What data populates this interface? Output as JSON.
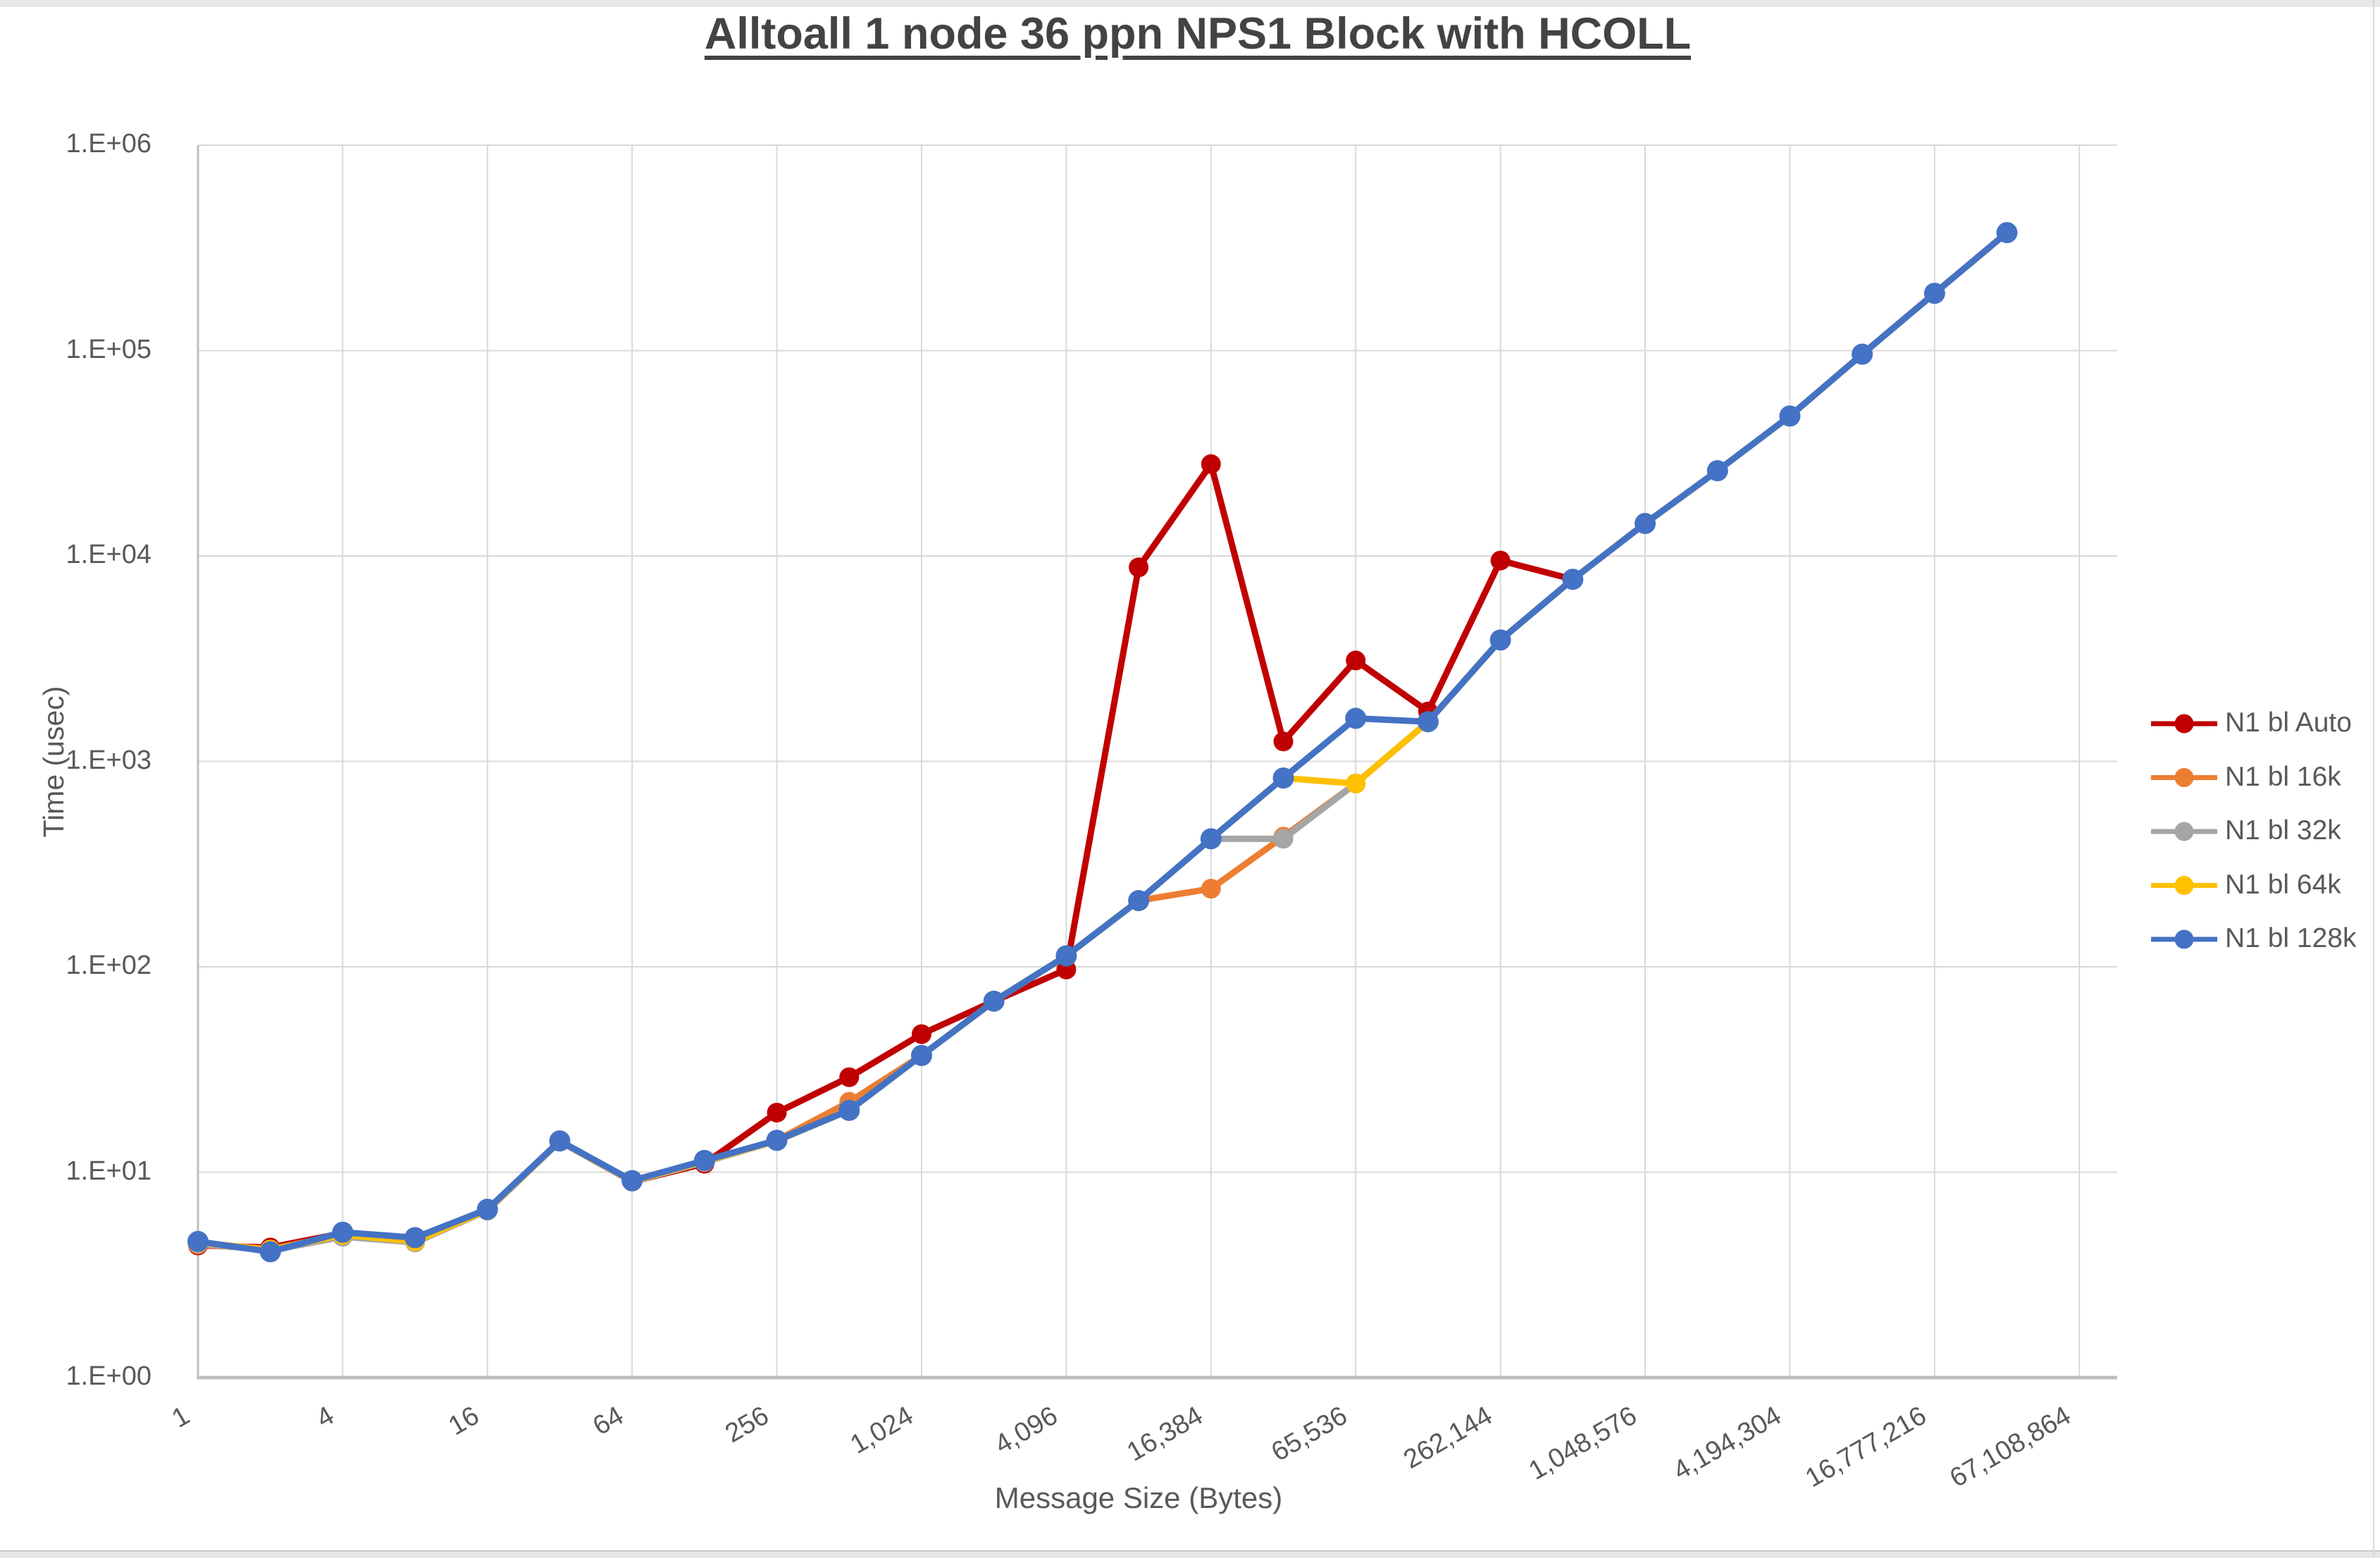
{
  "title": "Alltoall 1 node 36 ppn NPS1 Block with HCOLL",
  "chart_data": {
    "type": "line",
    "title": "Alltoall 1 node 36 ppn NPS1 Block with HCOLL",
    "xlabel": "Message Size (Bytes)",
    "ylabel": "Time (usec)",
    "x_scale": "log2-category",
    "y_scale": "log10",
    "ylim": [
      1,
      1000000
    ],
    "grid": true,
    "legend_position": "right",
    "y_tick_labels": [
      "1.E+00",
      "1.E+01",
      "1.E+02",
      "1.E+03",
      "1.E+04",
      "1.E+05",
      "1.E+06"
    ],
    "x_tick_labels": [
      "1",
      "4",
      "16",
      "64",
      "256",
      "1,024",
      "4,096",
      "16,384",
      "65,536",
      "262,144",
      "1,048,576",
      "4,194,304",
      "16,777,216",
      "67,108,864"
    ],
    "sizes": [
      1,
      2,
      4,
      8,
      16,
      32,
      64,
      128,
      256,
      512,
      1024,
      2048,
      4096,
      8192,
      16384,
      32768,
      65536,
      131072,
      262144,
      524288,
      1048576,
      2097152,
      4194304,
      8388608,
      16777216,
      33554432
    ],
    "series": [
      {
        "name": "N1 bl Auto",
        "color": "#C00000",
        "values": [
          4.4,
          4.3,
          5.05,
          4.75,
          6.5,
          14.1,
          9.0,
          11.0,
          19.5,
          29,
          47,
          68,
          97,
          8800,
          28000,
          1250,
          3100,
          1750,
          9500,
          7700
        ]
      },
      {
        "name": "N1 bl 16k",
        "color": "#ED7D31",
        "values": [
          4.45,
          4.2,
          5.0,
          4.7,
          6.55,
          14.1,
          9.0,
          11.2,
          14.3,
          22,
          37,
          68,
          113,
          210,
          240,
          430,
          780,
          1560,
          3900,
          7700,
          14400,
          26000,
          48000,
          96000,
          190000,
          375000
        ]
      },
      {
        "name": "N1 bl 32k",
        "color": "#A5A5A5",
        "values": [
          4.5,
          4.15,
          4.85,
          4.55,
          6.5,
          14.1,
          9.0,
          11.2,
          14.2,
          20,
          37,
          68,
          113,
          210,
          420,
          420,
          780,
          1560,
          3900,
          7700,
          14400,
          26000,
          48000,
          96000,
          190000,
          375000
        ]
      },
      {
        "name": "N1 bl 64k",
        "color": "#FFC000",
        "values": [
          4.55,
          4.2,
          4.95,
          4.6,
          6.55,
          14.2,
          9.05,
          11.3,
          14.25,
          20,
          37,
          68,
          113,
          210,
          420,
          830,
          780,
          1560,
          3900,
          7700,
          14400,
          26000,
          48000,
          96000,
          190000,
          375000
        ]
      },
      {
        "name": "N1 bl 128k",
        "color": "#4472C4",
        "values": [
          4.6,
          4.1,
          5.1,
          4.8,
          6.6,
          14.2,
          9.1,
          11.4,
          14.3,
          20,
          37,
          68,
          113,
          210,
          420,
          830,
          1620,
          1560,
          3900,
          7700,
          14400,
          26000,
          48000,
          96000,
          190000,
          375000
        ]
      }
    ]
  }
}
